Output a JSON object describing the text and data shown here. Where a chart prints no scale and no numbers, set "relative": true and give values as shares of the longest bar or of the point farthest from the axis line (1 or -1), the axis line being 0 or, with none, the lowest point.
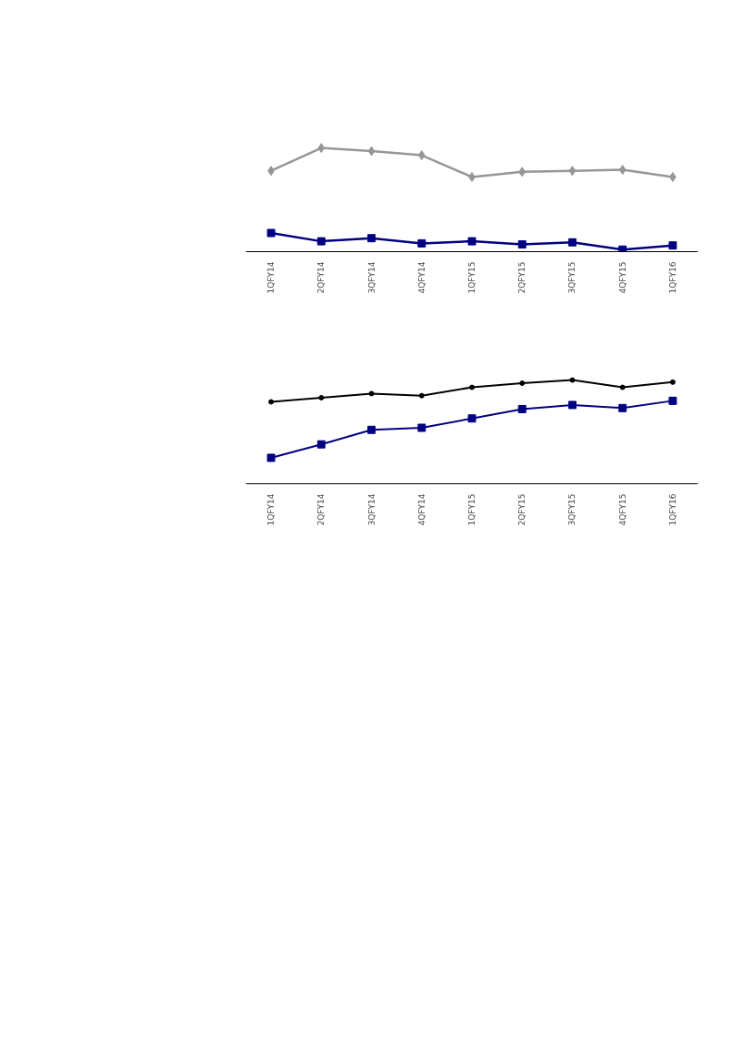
{
  "chart_data": [
    {
      "type": "line",
      "relative": true,
      "grid": false,
      "categories": [
        "1QFY14",
        "2QFY14",
        "3QFY14",
        "4QFY14",
        "1QFY15",
        "2QFY15",
        "3QFY15",
        "4QFY15",
        "1QFY16"
      ],
      "series": [
        {
          "color": "#000080",
          "marker": "square",
          "values": [
            0.18,
            0.1,
            0.13,
            0.08,
            0.1,
            0.07,
            0.09,
            0.02,
            0.06
          ]
        },
        {
          "color": "#969696",
          "marker": "diamond",
          "values": [
            0.78,
            1.0,
            0.97,
            0.93,
            0.72,
            0.77,
            0.78,
            0.79,
            0.72
          ]
        }
      ]
    },
    {
      "type": "line",
      "relative": true,
      "grid": false,
      "categories": [
        "1QFY14",
        "2QFY14",
        "3QFY14",
        "4QFY14",
        "1QFY15",
        "2QFY15",
        "3QFY15",
        "4QFY15",
        "1QFY16"
      ],
      "series": [
        {
          "color": "#000000",
          "marker": "circle",
          "values": [
            0.79,
            0.83,
            0.87,
            0.85,
            0.93,
            0.97,
            1.0,
            0.93,
            0.98
          ]
        },
        {
          "color": "#000080",
          "marker": "square",
          "values": [
            0.25,
            0.38,
            0.52,
            0.54,
            0.63,
            0.72,
            0.76,
            0.73,
            0.8
          ]
        }
      ]
    }
  ]
}
